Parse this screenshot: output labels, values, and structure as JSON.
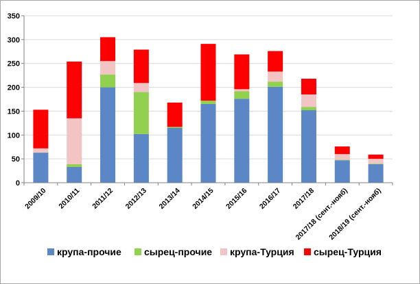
{
  "chart_data": {
    "type": "bar",
    "stacked": true,
    "title": "",
    "xlabel": "",
    "ylabel": "",
    "ylim": [
      0,
      350
    ],
    "yticks": [
      0,
      50,
      100,
      150,
      200,
      250,
      300,
      350
    ],
    "grid": true,
    "legend_position": "bottom",
    "categories": [
      "2009/10",
      "2010/11",
      "2011/12",
      "2012/13",
      "2013/14",
      "2014/15",
      "2015/16",
      "2016/17",
      "2017/18",
      "2017/18 (сент.-нояб)",
      "2018/19 (сент.-нояб)"
    ],
    "series": [
      {
        "name": "крупа-прочие",
        "color": "#5b87c6",
        "values": [
          63,
          33,
          200,
          102,
          115,
          165,
          176,
          201,
          152,
          47,
          39
        ]
      },
      {
        "name": "сырец-прочие",
        "color": "#92d050",
        "values": [
          0,
          6,
          27,
          88,
          2,
          7,
          16,
          11,
          7,
          1,
          1
        ]
      },
      {
        "name": "крупа-Турция",
        "color": "#f2c4c4",
        "values": [
          9,
          96,
          28,
          19,
          0,
          0,
          4,
          21,
          26,
          12,
          10
        ]
      },
      {
        "name": "сырец-Турция",
        "color": "#ff0000",
        "values": [
          81,
          119,
          50,
          70,
          51,
          119,
          73,
          43,
          33,
          16,
          9
        ]
      }
    ]
  }
}
